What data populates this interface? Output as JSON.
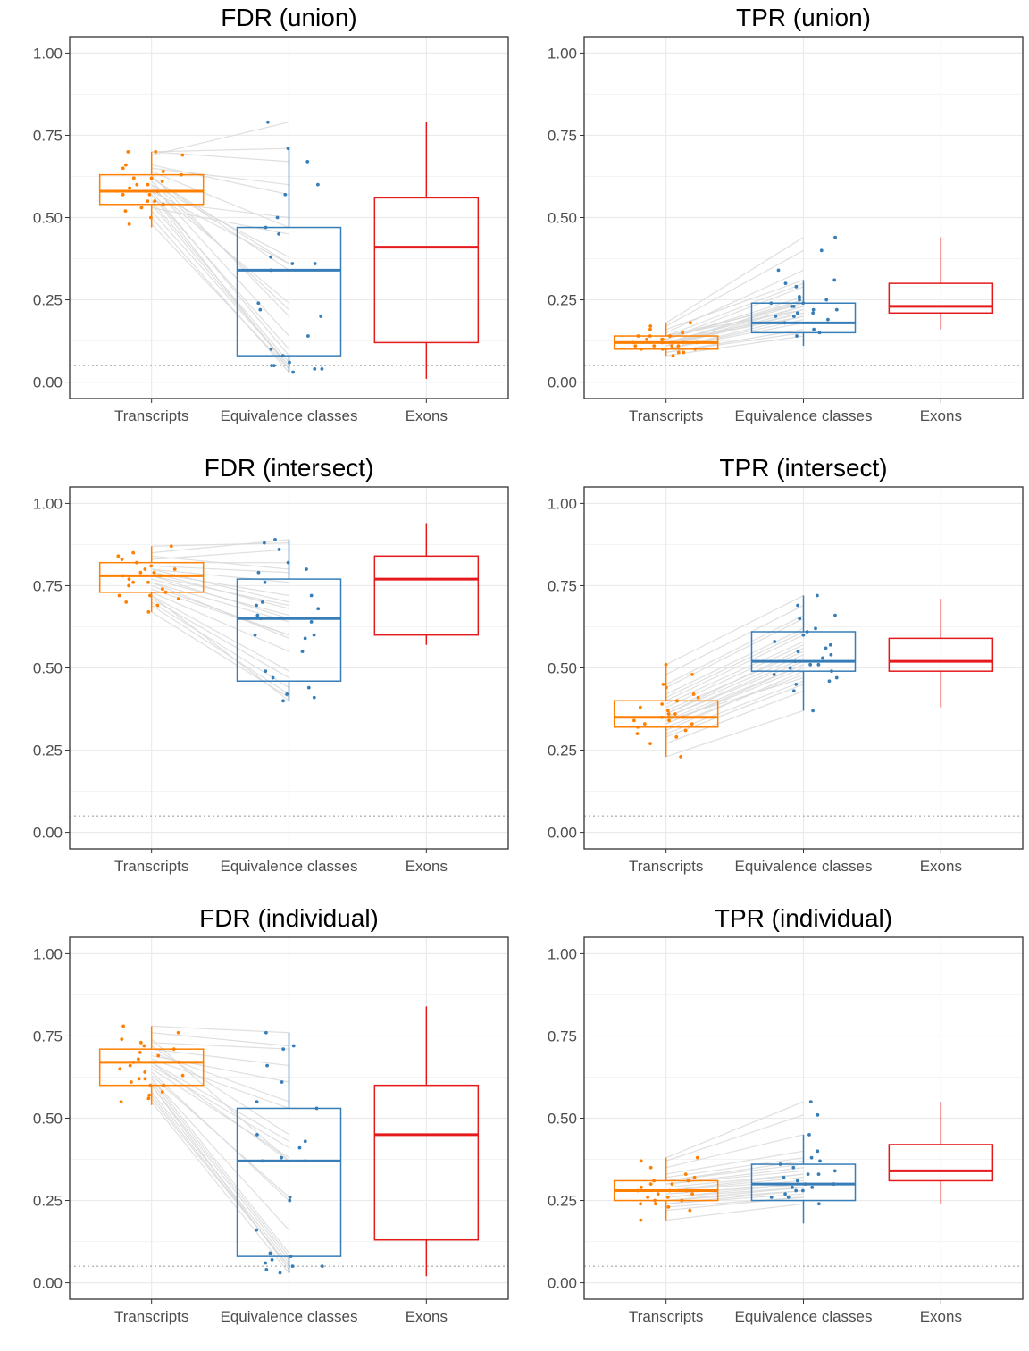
{
  "colors": {
    "Transcripts": "#ff7f00",
    "Equivalence classes": "#377eb8",
    "Exons": "#e41a1c",
    "pair_line": "#d9d9d9",
    "grid": "#ebebeb",
    "reference_line": "#b3b3b3"
  },
  "chart_data": [
    {
      "type": "box",
      "title": "FDR (union)",
      "xlabel": "",
      "ylabel": "",
      "categories": [
        "Transcripts",
        "Equivalence classes",
        "Exons"
      ],
      "ylim": [
        -0.05,
        1.05
      ],
      "yticks": [
        0,
        0.25,
        0.5,
        0.75,
        1
      ],
      "ytick_labels": [
        "0.00",
        "0.25",
        "0.50",
        "0.75",
        "1.00"
      ],
      "reference_line": 0.05,
      "grid": true,
      "legend": "none",
      "boxes": [
        {
          "category": "Transcripts",
          "whisker_low": 0.47,
          "q1": 0.54,
          "median": 0.58,
          "q3": 0.63,
          "whisker_high": 0.7
        },
        {
          "category": "Equivalence classes",
          "whisker_low": 0.03,
          "q1": 0.08,
          "median": 0.34,
          "q3": 0.47,
          "whisker_high": 0.71
        },
        {
          "category": "Exons",
          "whisker_low": 0.01,
          "q1": 0.12,
          "median": 0.41,
          "q3": 0.56,
          "whisker_high": 0.79
        }
      ],
      "points": [
        [
          0.5,
          0.03
        ],
        [
          0.52,
          0.05
        ],
        [
          0.55,
          0.06
        ],
        [
          0.57,
          0.04
        ],
        [
          0.58,
          0.08
        ],
        [
          0.6,
          0.14
        ],
        [
          0.61,
          0.22
        ],
        [
          0.62,
          0.34
        ],
        [
          0.64,
          0.47
        ],
        [
          0.7,
          0.71
        ],
        [
          0.59,
          0.24
        ],
        [
          0.63,
          0.2
        ],
        [
          0.66,
          0.57
        ],
        [
          0.69,
          0.79
        ],
        [
          0.58,
          0.36
        ],
        [
          0.54,
          0.05
        ],
        [
          0.48,
          0.04
        ],
        [
          0.6,
          0.38
        ],
        [
          0.55,
          0.5
        ],
        [
          0.7,
          0.67
        ],
        [
          0.53,
          0.45
        ],
        [
          0.65,
          0.6
        ],
        [
          0.62,
          0.36
        ],
        [
          0.57,
          0.1
        ]
      ]
    },
    {
      "type": "box",
      "title": "TPR (union)",
      "xlabel": "",
      "ylabel": "",
      "categories": [
        "Transcripts",
        "Equivalence classes",
        "Exons"
      ],
      "ylim": [
        -0.05,
        1.05
      ],
      "yticks": [
        0,
        0.25,
        0.5,
        0.75,
        1
      ],
      "ytick_labels": [
        "0.00",
        "0.25",
        "0.50",
        "0.75",
        "1.00"
      ],
      "reference_line": 0.05,
      "grid": true,
      "legend": "none",
      "boxes": [
        {
          "category": "Transcripts",
          "whisker_low": 0.08,
          "q1": 0.1,
          "median": 0.12,
          "q3": 0.14,
          "whisker_high": 0.18
        },
        {
          "category": "Equivalence classes",
          "whisker_low": 0.11,
          "q1": 0.15,
          "median": 0.18,
          "q3": 0.24,
          "whisker_high": 0.31
        },
        {
          "category": "Exons",
          "whisker_low": 0.16,
          "q1": 0.21,
          "median": 0.23,
          "q3": 0.3,
          "whisker_high": 0.44
        }
      ],
      "points": [
        [
          0.08,
          0.14
        ],
        [
          0.09,
          0.16
        ],
        [
          0.1,
          0.18
        ],
        [
          0.1,
          0.2
        ],
        [
          0.11,
          0.21
        ],
        [
          0.11,
          0.22
        ],
        [
          0.12,
          0.23
        ],
        [
          0.12,
          0.24
        ],
        [
          0.13,
          0.25
        ],
        [
          0.13,
          0.26
        ],
        [
          0.14,
          0.3
        ],
        [
          0.15,
          0.34
        ],
        [
          0.17,
          0.4
        ],
        [
          0.18,
          0.44
        ],
        [
          0.1,
          0.19
        ],
        [
          0.12,
          0.21
        ],
        [
          0.14,
          0.24
        ],
        [
          0.11,
          0.23
        ],
        [
          0.13,
          0.29
        ],
        [
          0.09,
          0.15
        ],
        [
          0.16,
          0.31
        ],
        [
          0.12,
          0.2
        ],
        [
          0.11,
          0.25
        ],
        [
          0.14,
          0.22
        ]
      ]
    },
    {
      "type": "box",
      "title": "FDR (intersect)",
      "xlabel": "",
      "ylabel": "",
      "categories": [
        "Transcripts",
        "Equivalence classes",
        "Exons"
      ],
      "ylim": [
        -0.05,
        1.05
      ],
      "yticks": [
        0,
        0.25,
        0.5,
        0.75,
        1
      ],
      "ytick_labels": [
        "0.00",
        "0.25",
        "0.50",
        "0.75",
        "1.00"
      ],
      "reference_line": 0.05,
      "grid": true,
      "legend": "none",
      "boxes": [
        {
          "category": "Transcripts",
          "whisker_low": 0.67,
          "q1": 0.73,
          "median": 0.78,
          "q3": 0.82,
          "whisker_high": 0.87
        },
        {
          "category": "Equivalence classes",
          "whisker_low": 0.4,
          "q1": 0.46,
          "median": 0.65,
          "q3": 0.77,
          "whisker_high": 0.89
        },
        {
          "category": "Exons",
          "whisker_low": 0.57,
          "q1": 0.6,
          "median": 0.77,
          "q3": 0.84,
          "whisker_high": 0.94
        }
      ],
      "points": [
        [
          0.67,
          0.41
        ],
        [
          0.69,
          0.42
        ],
        [
          0.7,
          0.44
        ],
        [
          0.71,
          0.47
        ],
        [
          0.72,
          0.49
        ],
        [
          0.73,
          0.55
        ],
        [
          0.74,
          0.6
        ],
        [
          0.76,
          0.64
        ],
        [
          0.77,
          0.66
        ],
        [
          0.78,
          0.69
        ],
        [
          0.79,
          0.72
        ],
        [
          0.8,
          0.76
        ],
        [
          0.81,
          0.79
        ],
        [
          0.82,
          0.82
        ],
        [
          0.83,
          0.86
        ],
        [
          0.85,
          0.89
        ],
        [
          0.87,
          0.88
        ],
        [
          0.75,
          0.6
        ],
        [
          0.78,
          0.65
        ],
        [
          0.8,
          0.7
        ],
        [
          0.72,
          0.4
        ],
        [
          0.84,
          0.8
        ],
        [
          0.76,
          0.59
        ],
        [
          0.79,
          0.68
        ]
      ]
    },
    {
      "type": "box",
      "title": "TPR (intersect)",
      "xlabel": "",
      "ylabel": "",
      "categories": [
        "Transcripts",
        "Equivalence classes",
        "Exons"
      ],
      "ylim": [
        -0.05,
        1.05
      ],
      "yticks": [
        0,
        0.25,
        0.5,
        0.75,
        1
      ],
      "ytick_labels": [
        "0.00",
        "0.25",
        "0.50",
        "0.75",
        "1.00"
      ],
      "reference_line": 0.05,
      "grid": true,
      "legend": "none",
      "boxes": [
        {
          "category": "Transcripts",
          "whisker_low": 0.23,
          "q1": 0.32,
          "median": 0.35,
          "q3": 0.4,
          "whisker_high": 0.51
        },
        {
          "category": "Equivalence classes",
          "whisker_low": 0.37,
          "q1": 0.49,
          "median": 0.52,
          "q3": 0.61,
          "whisker_high": 0.72
        },
        {
          "category": "Exons",
          "whisker_low": 0.38,
          "q1": 0.49,
          "median": 0.52,
          "q3": 0.59,
          "whisker_high": 0.71
        }
      ],
      "points": [
        [
          0.23,
          0.37
        ],
        [
          0.27,
          0.43
        ],
        [
          0.3,
          0.46
        ],
        [
          0.32,
          0.48
        ],
        [
          0.33,
          0.5
        ],
        [
          0.34,
          0.51
        ],
        [
          0.35,
          0.52
        ],
        [
          0.36,
          0.54
        ],
        [
          0.37,
          0.55
        ],
        [
          0.38,
          0.57
        ],
        [
          0.4,
          0.6
        ],
        [
          0.42,
          0.62
        ],
        [
          0.45,
          0.66
        ],
        [
          0.48,
          0.69
        ],
        [
          0.51,
          0.72
        ],
        [
          0.31,
          0.49
        ],
        [
          0.34,
          0.47
        ],
        [
          0.36,
          0.56
        ],
        [
          0.39,
          0.58
        ],
        [
          0.41,
          0.61
        ],
        [
          0.29,
          0.45
        ],
        [
          0.35,
          0.53
        ],
        [
          0.44,
          0.65
        ],
        [
          0.33,
          0.51
        ]
      ]
    },
    {
      "type": "box",
      "title": "FDR (individual)",
      "xlabel": "",
      "ylabel": "",
      "categories": [
        "Transcripts",
        "Equivalence classes",
        "Exons"
      ],
      "ylim": [
        -0.05,
        1.05
      ],
      "yticks": [
        0,
        0.25,
        0.5,
        0.75,
        1
      ],
      "ytick_labels": [
        "0.00",
        "0.25",
        "0.50",
        "0.75",
        "1.00"
      ],
      "reference_line": 0.05,
      "grid": true,
      "legend": "none",
      "boxes": [
        {
          "category": "Transcripts",
          "whisker_low": 0.54,
          "q1": 0.6,
          "median": 0.67,
          "q3": 0.71,
          "whisker_high": 0.78
        },
        {
          "category": "Equivalence classes",
          "whisker_low": 0.03,
          "q1": 0.08,
          "median": 0.37,
          "q3": 0.53,
          "whisker_high": 0.76
        },
        {
          "category": "Exons",
          "whisker_low": 0.02,
          "q1": 0.13,
          "median": 0.45,
          "q3": 0.6,
          "whisker_high": 0.84
        }
      ],
      "points": [
        [
          0.55,
          0.03
        ],
        [
          0.57,
          0.05
        ],
        [
          0.58,
          0.06
        ],
        [
          0.6,
          0.04
        ],
        [
          0.61,
          0.08
        ],
        [
          0.62,
          0.16
        ],
        [
          0.63,
          0.26
        ],
        [
          0.65,
          0.38
        ],
        [
          0.66,
          0.41
        ],
        [
          0.67,
          0.43
        ],
        [
          0.68,
          0.53
        ],
        [
          0.69,
          0.61
        ],
        [
          0.71,
          0.66
        ],
        [
          0.73,
          0.71
        ],
        [
          0.76,
          0.72
        ],
        [
          0.78,
          0.76
        ],
        [
          0.6,
          0.07
        ],
        [
          0.64,
          0.25
        ],
        [
          0.7,
          0.55
        ],
        [
          0.74,
          0.37
        ],
        [
          0.56,
          0.05
        ],
        [
          0.67,
          0.37
        ],
        [
          0.62,
          0.09
        ],
        [
          0.72,
          0.45
        ]
      ]
    },
    {
      "type": "box",
      "title": "TPR (individual)",
      "xlabel": "",
      "ylabel": "",
      "categories": [
        "Transcripts",
        "Equivalence classes",
        "Exons"
      ],
      "ylim": [
        -0.05,
        1.05
      ],
      "yticks": [
        0,
        0.25,
        0.5,
        0.75,
        1
      ],
      "ytick_labels": [
        "0.00",
        "0.25",
        "0.50",
        "0.75",
        "1.00"
      ],
      "reference_line": 0.05,
      "grid": true,
      "legend": "none",
      "boxes": [
        {
          "category": "Transcripts",
          "whisker_low": 0.19,
          "q1": 0.25,
          "median": 0.28,
          "q3": 0.31,
          "whisker_high": 0.38
        },
        {
          "category": "Equivalence classes",
          "whisker_low": 0.18,
          "q1": 0.25,
          "median": 0.3,
          "q3": 0.36,
          "whisker_high": 0.45
        },
        {
          "category": "Exons",
          "whisker_low": 0.24,
          "q1": 0.31,
          "median": 0.34,
          "q3": 0.42,
          "whisker_high": 0.55
        }
      ],
      "points": [
        [
          0.19,
          0.24
        ],
        [
          0.22,
          0.26
        ],
        [
          0.23,
          0.26
        ],
        [
          0.24,
          0.27
        ],
        [
          0.25,
          0.28
        ],
        [
          0.26,
          0.29
        ],
        [
          0.27,
          0.3
        ],
        [
          0.27,
          0.3
        ],
        [
          0.28,
          0.31
        ],
        [
          0.28,
          0.32
        ],
        [
          0.29,
          0.33
        ],
        [
          0.3,
          0.34
        ],
        [
          0.3,
          0.35
        ],
        [
          0.31,
          0.36
        ],
        [
          0.32,
          0.38
        ],
        [
          0.33,
          0.4
        ],
        [
          0.35,
          0.45
        ],
        [
          0.37,
          0.51
        ],
        [
          0.38,
          0.55
        ],
        [
          0.25,
          0.29
        ],
        [
          0.28,
          0.33
        ],
        [
          0.24,
          0.28
        ],
        [
          0.31,
          0.37
        ],
        [
          0.26,
          0.3
        ]
      ]
    }
  ]
}
